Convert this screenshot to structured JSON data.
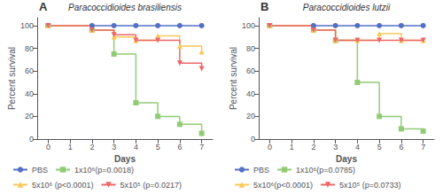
{
  "chart_data": [
    {
      "type": "step",
      "title": "Paracoccidioides brasiliensis",
      "annotation": "A",
      "xlabel": "Days",
      "ylabel": "Percent survival",
      "xlim": [
        -0.5,
        7.5
      ],
      "xticks": [
        0,
        1,
        2,
        3,
        4,
        5,
        6,
        7
      ],
      "ylim": [
        0,
        107
      ],
      "yticks": [
        0,
        20,
        40,
        60,
        80,
        100
      ],
      "grid": false,
      "legend": "bottom",
      "series": [
        {
          "name": "PBS",
          "marker": "circle",
          "x": [
            0,
            2,
            3,
            4,
            5,
            6,
            7
          ],
          "values": [
            100,
            100,
            100,
            100,
            100,
            100,
            100
          ]
        },
        {
          "name": "1x10⁶(p=0.0018)",
          "marker": "square",
          "x": [
            0,
            2,
            3,
            4,
            5,
            6,
            7
          ],
          "values": [
            100,
            96,
            75,
            32,
            20,
            13,
            5
          ]
        },
        {
          "name": "5x10⁶ (p<0.0001)",
          "marker": "triangle-up",
          "x": [
            0,
            2,
            3,
            4,
            5,
            6,
            7
          ],
          "values": [
            100,
            96,
            90,
            87,
            91,
            82,
            77
          ]
        },
        {
          "name": "5x10⁵ (p=0.0217)",
          "marker": "triangle-down",
          "x": [
            0,
            2,
            3,
            4,
            5,
            6,
            7
          ],
          "values": [
            100,
            96,
            92,
            87,
            87,
            67,
            62
          ]
        }
      ]
    },
    {
      "type": "step",
      "title": "Paracoccidioides lutzii",
      "annotation": "B",
      "xlabel": "Days",
      "ylabel": "Percent survival",
      "xlim": [
        -0.5,
        7.5
      ],
      "xticks": [
        0,
        1,
        2,
        3,
        4,
        5,
        6,
        7
      ],
      "ylim": [
        0,
        107
      ],
      "yticks": [
        0,
        20,
        40,
        60,
        80,
        100
      ],
      "grid": false,
      "legend": "bottom",
      "series": [
        {
          "name": "PBS",
          "marker": "circle",
          "x": [
            0,
            2,
            3,
            4,
            5,
            6,
            7
          ],
          "values": [
            100,
            100,
            100,
            100,
            100,
            100,
            100
          ]
        },
        {
          "name": "1x10⁶(p=0.0785)",
          "marker": "square",
          "x": [
            0,
            2,
            3,
            4,
            5,
            6,
            7
          ],
          "values": [
            100,
            96,
            87,
            50,
            20,
            9,
            7
          ]
        },
        {
          "name": "5x10⁶(p<0.0001)",
          "marker": "triangle-up",
          "x": [
            0,
            2,
            3,
            4,
            5,
            6,
            7
          ],
          "values": [
            100,
            96,
            87,
            87,
            93,
            87,
            87
          ]
        },
        {
          "name": "5x10⁵ (p=0.0733)",
          "marker": "triangle-down",
          "x": [
            0,
            2,
            3,
            4,
            5,
            6,
            7
          ],
          "values": [
            100,
            96,
            87,
            87,
            87,
            87,
            87
          ]
        }
      ]
    }
  ]
}
